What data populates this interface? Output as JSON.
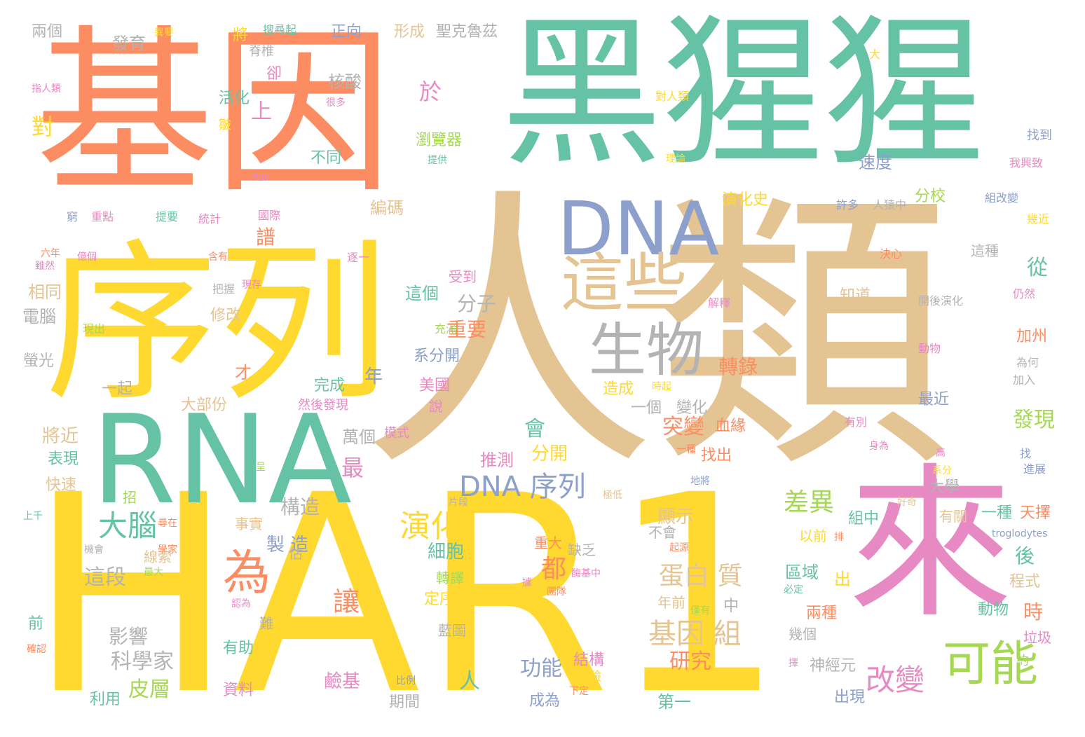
{
  "colors": {
    "teal": "#66c2a5",
    "orange": "#fc8d62",
    "blue": "#8da0cb",
    "pink": "#e78ac3",
    "lime": "#a6d854",
    "yellow": "#ffd92f",
    "tan": "#e5c494",
    "gray": "#b3b3b3"
  },
  "words": [
    {
      "text": "人類",
      "color": "tan"
    },
    {
      "text": "HAR1",
      "color": "yellow"
    },
    {
      "text": "黑猩猩",
      "color": "teal"
    },
    {
      "text": "基因",
      "color": "orange"
    },
    {
      "text": "序列",
      "color": "yellow"
    },
    {
      "text": "RNA",
      "color": "teal"
    },
    {
      "text": "來",
      "color": "pink"
    },
    {
      "text": "DNA",
      "color": "blue"
    },
    {
      "text": "這些",
      "color": "tan"
    },
    {
      "text": "生物",
      "color": "gray"
    },
    {
      "text": "可能",
      "color": "lime"
    },
    {
      "text": "為",
      "color": "orange"
    },
    {
      "text": "大腦",
      "color": "teal"
    },
    {
      "text": "演化",
      "color": "yellow"
    },
    {
      "text": "DNA 序列",
      "color": "blue"
    },
    {
      "text": "基因 組",
      "color": "tan"
    },
    {
      "text": "差異",
      "color": "lime"
    },
    {
      "text": "蛋白 質",
      "color": "tan"
    },
    {
      "text": "改變",
      "color": "pink"
    },
    {
      "text": "讓",
      "color": "orange"
    },
    {
      "text": "科學家",
      "color": "gray"
    },
    {
      "text": "皮層",
      "color": "lime"
    },
    {
      "text": "構造",
      "color": "gray"
    },
    {
      "text": "這段",
      "color": "gray"
    },
    {
      "text": "突變",
      "color": "orange"
    },
    {
      "text": "都",
      "color": "orange"
    },
    {
      "text": "影響",
      "color": "gray"
    },
    {
      "text": "研究",
      "color": "orange"
    },
    {
      "text": "功能",
      "color": "blue"
    },
    {
      "text": "會",
      "color": "teal"
    },
    {
      "text": "最",
      "color": "pink"
    },
    {
      "text": "分子",
      "color": "gray"
    },
    {
      "text": "重要",
      "color": "orange"
    },
    {
      "text": "發現",
      "color": "lime"
    },
    {
      "text": "轉錄",
      "color": "orange"
    },
    {
      "text": "分開",
      "color": "yellow"
    },
    {
      "text": "顯示",
      "color": "tan"
    },
    {
      "text": "細胞",
      "color": "teal"
    },
    {
      "text": "速度",
      "color": "blue"
    },
    {
      "text": "演化史",
      "color": "yellow"
    },
    {
      "text": "分校",
      "color": "lime"
    },
    {
      "text": "這個",
      "color": "teal"
    },
    {
      "text": "萬個",
      "color": "gray"
    },
    {
      "text": "核酸",
      "color": "gray"
    },
    {
      "text": "於",
      "color": "pink"
    },
    {
      "text": "編碼",
      "color": "tan"
    },
    {
      "text": "瀏覽器",
      "color": "lime"
    },
    {
      "text": "不同",
      "color": "teal"
    },
    {
      "text": "發育",
      "color": "gray"
    },
    {
      "text": "形成",
      "color": "tan"
    },
    {
      "text": "聖克魯茲",
      "color": "gray"
    },
    {
      "text": "正向",
      "color": "blue"
    },
    {
      "text": "兩個",
      "color": "gray"
    },
    {
      "text": "對",
      "color": "yellow"
    },
    {
      "text": "活化",
      "color": "teal"
    },
    {
      "text": "上",
      "color": "pink"
    },
    {
      "text": "譜",
      "color": "orange"
    },
    {
      "text": "電腦",
      "color": "gray"
    },
    {
      "text": "相同",
      "color": "tan"
    },
    {
      "text": "修改",
      "color": "tan"
    },
    {
      "text": "螢光",
      "color": "gray"
    },
    {
      "text": "才",
      "color": "orange"
    },
    {
      "text": "一起",
      "color": "gray"
    },
    {
      "text": "大部份",
      "color": "tan"
    },
    {
      "text": "將近",
      "color": "tan"
    },
    {
      "text": "表現",
      "color": "teal"
    },
    {
      "text": "快速",
      "color": "tan"
    },
    {
      "text": "完成",
      "color": "teal"
    },
    {
      "text": "年",
      "color": "blue"
    },
    {
      "text": "美國",
      "color": "pink"
    },
    {
      "text": "系分開",
      "color": "blue"
    },
    {
      "text": "推測",
      "color": "pink"
    },
    {
      "text": "製 造",
      "color": "blue"
    },
    {
      "text": "轉譯",
      "color": "lime"
    },
    {
      "text": "定序",
      "color": "yellow"
    },
    {
      "text": "大學",
      "color": "gray"
    },
    {
      "text": "一種",
      "color": "teal"
    },
    {
      "text": "天擇",
      "color": "orange"
    },
    {
      "text": "組中",
      "color": "teal"
    },
    {
      "text": "後",
      "color": "teal"
    },
    {
      "text": "時",
      "color": "orange"
    },
    {
      "text": "程式",
      "color": "tan"
    },
    {
      "text": "區域",
      "color": "teal"
    },
    {
      "text": "出",
      "color": "yellow"
    },
    {
      "text": "兩種",
      "color": "orange"
    },
    {
      "text": "動物",
      "color": "teal"
    },
    {
      "text": "垃圾",
      "color": "pink"
    },
    {
      "text": "神經元",
      "color": "gray"
    },
    {
      "text": "出現",
      "color": "blue"
    },
    {
      "text": "第一",
      "color": "teal"
    },
    {
      "text": "最近",
      "color": "blue"
    },
    {
      "text": "知道",
      "color": "tan"
    },
    {
      "text": "從",
      "color": "teal"
    },
    {
      "text": "加州",
      "color": "orange"
    },
    {
      "text": "這種",
      "color": "gray"
    },
    {
      "text": "人",
      "color": "teal"
    },
    {
      "text": "鹼基",
      "color": "pink"
    },
    {
      "text": "利用",
      "color": "teal"
    },
    {
      "text": "資料",
      "color": "pink"
    },
    {
      "text": "期間",
      "color": "gray"
    },
    {
      "text": "有助",
      "color": "teal"
    },
    {
      "text": "成為",
      "color": "blue"
    },
    {
      "text": "結構",
      "color": "pink"
    },
    {
      "text": "實驗",
      "color": "yellow"
    },
    {
      "text": "年前",
      "color": "tan"
    },
    {
      "text": "中",
      "color": "gray"
    },
    {
      "text": "以前",
      "color": "yellow"
    },
    {
      "text": "有關",
      "color": "tan"
    },
    {
      "text": "重大",
      "color": "orange"
    },
    {
      "text": "缺乏",
      "color": "gray"
    },
    {
      "text": "血緣",
      "color": "orange"
    },
    {
      "text": "找出",
      "color": "orange"
    },
    {
      "text": "變化",
      "color": "gray"
    },
    {
      "text": "一個",
      "color": "gray"
    },
    {
      "text": "造成",
      "color": "yellow"
    },
    {
      "text": "模式",
      "color": "pink"
    },
    {
      "text": "受到",
      "color": "pink"
    },
    {
      "text": "藍圖",
      "color": "gray"
    },
    {
      "text": "線索",
      "color": "tan"
    },
    {
      "text": "事實",
      "color": "tan"
    },
    {
      "text": "估",
      "color": "gray"
    },
    {
      "text": "前",
      "color": "teal"
    },
    {
      "text": "難",
      "color": "gray"
    },
    {
      "text": "幾個",
      "color": "gray"
    },
    {
      "text": "約",
      "color": "lime"
    },
    {
      "text": "說",
      "color": "pink"
    },
    {
      "text": "然後發現",
      "color": "pink"
    },
    {
      "text": "充滿",
      "color": "lime"
    },
    {
      "text": "現出",
      "color": "lime"
    },
    {
      "text": "把握",
      "color": "gray"
    },
    {
      "text": "現存",
      "color": "pink"
    },
    {
      "text": "含有",
      "color": "orange"
    },
    {
      "text": "逐一",
      "color": "pink"
    },
    {
      "text": "國際",
      "color": "pink"
    },
    {
      "text": "統計",
      "color": "pink"
    },
    {
      "text": "提要",
      "color": "teal"
    },
    {
      "text": "重點",
      "color": "pink"
    },
    {
      "text": "窮",
      "color": "blue"
    },
    {
      "text": "億個",
      "color": "pink"
    },
    {
      "text": "六年",
      "color": "orange"
    },
    {
      "text": "雖然",
      "color": "pink"
    },
    {
      "text": "Pan",
      "color": "pink"
    },
    {
      "text": "提供",
      "color": "teal"
    },
    {
      "text": "很多",
      "color": "pink"
    },
    {
      "text": "卻",
      "color": "pink"
    },
    {
      "text": "脊椎",
      "color": "gray"
    },
    {
      "text": "將",
      "color": "yellow"
    },
    {
      "text": "搜尋起",
      "color": "teal"
    },
    {
      "text": "異要",
      "color": "yellow"
    },
    {
      "text": "指人類",
      "color": "pink"
    },
    {
      "text": "皺",
      "color": "yellow"
    },
    {
      "text": "許多",
      "color": "blue"
    },
    {
      "text": "人猿中",
      "color": "gray"
    },
    {
      "text": "組改變",
      "color": "blue"
    },
    {
      "text": "幾近",
      "color": "yellow"
    },
    {
      "text": "對人類",
      "color": "yellow"
    },
    {
      "text": "找到",
      "color": "blue"
    },
    {
      "text": "我興致",
      "color": "pink"
    },
    {
      "text": "大",
      "color": "yellow"
    },
    {
      "text": "理論",
      "color": "yellow"
    },
    {
      "text": "決心",
      "color": "orange"
    },
    {
      "text": "開後演化",
      "color": "gray"
    },
    {
      "text": "仍然",
      "color": "pink"
    },
    {
      "text": "解釋",
      "color": "pink"
    },
    {
      "text": "動物",
      "color": "pink"
    },
    {
      "text": "為何",
      "color": "gray"
    },
    {
      "text": "加入",
      "color": "gray"
    },
    {
      "text": "有別",
      "color": "pink"
    },
    {
      "text": "身為",
      "color": "pink"
    },
    {
      "text": "高",
      "color": "pink"
    },
    {
      "text": "系分",
      "color": "yellow"
    },
    {
      "text": "找",
      "color": "blue"
    },
    {
      "text": "進展",
      "color": "blue"
    },
    {
      "text": "好奇",
      "color": "tan"
    },
    {
      "text": "troglodytes",
      "color": "blue"
    },
    {
      "text": "一種",
      "color": "orange"
    },
    {
      "text": "地將",
      "color": "blue"
    },
    {
      "text": "極低",
      "color": "tan"
    },
    {
      "text": "片段",
      "color": "gray"
    },
    {
      "text": "時起",
      "color": "yellow"
    },
    {
      "text": "不會",
      "color": "gray"
    },
    {
      "text": "起源",
      "color": "orange"
    },
    {
      "text": "酶基中",
      "color": "pink"
    },
    {
      "text": "團隊",
      "color": "orange"
    },
    {
      "text": "僅有",
      "color": "lime"
    },
    {
      "text": "必定",
      "color": "teal"
    },
    {
      "text": "據",
      "color": "pink"
    },
    {
      "text": "擇",
      "color": "pink"
    },
    {
      "text": "下定",
      "color": "orange"
    },
    {
      "text": "比例",
      "color": "blue"
    },
    {
      "text": "認為",
      "color": "pink"
    },
    {
      "text": "確認",
      "color": "orange"
    },
    {
      "text": "機會",
      "color": "gray"
    },
    {
      "text": "學家",
      "color": "orange"
    },
    {
      "text": "最大",
      "color": "lime"
    },
    {
      "text": "上千",
      "color": "teal"
    },
    {
      "text": "呈",
      "color": "lime"
    },
    {
      "text": "招",
      "color": "lime"
    },
    {
      "text": "尋在",
      "color": "orange"
    },
    {
      "text": "排",
      "color": "orange"
    }
  ]
}
